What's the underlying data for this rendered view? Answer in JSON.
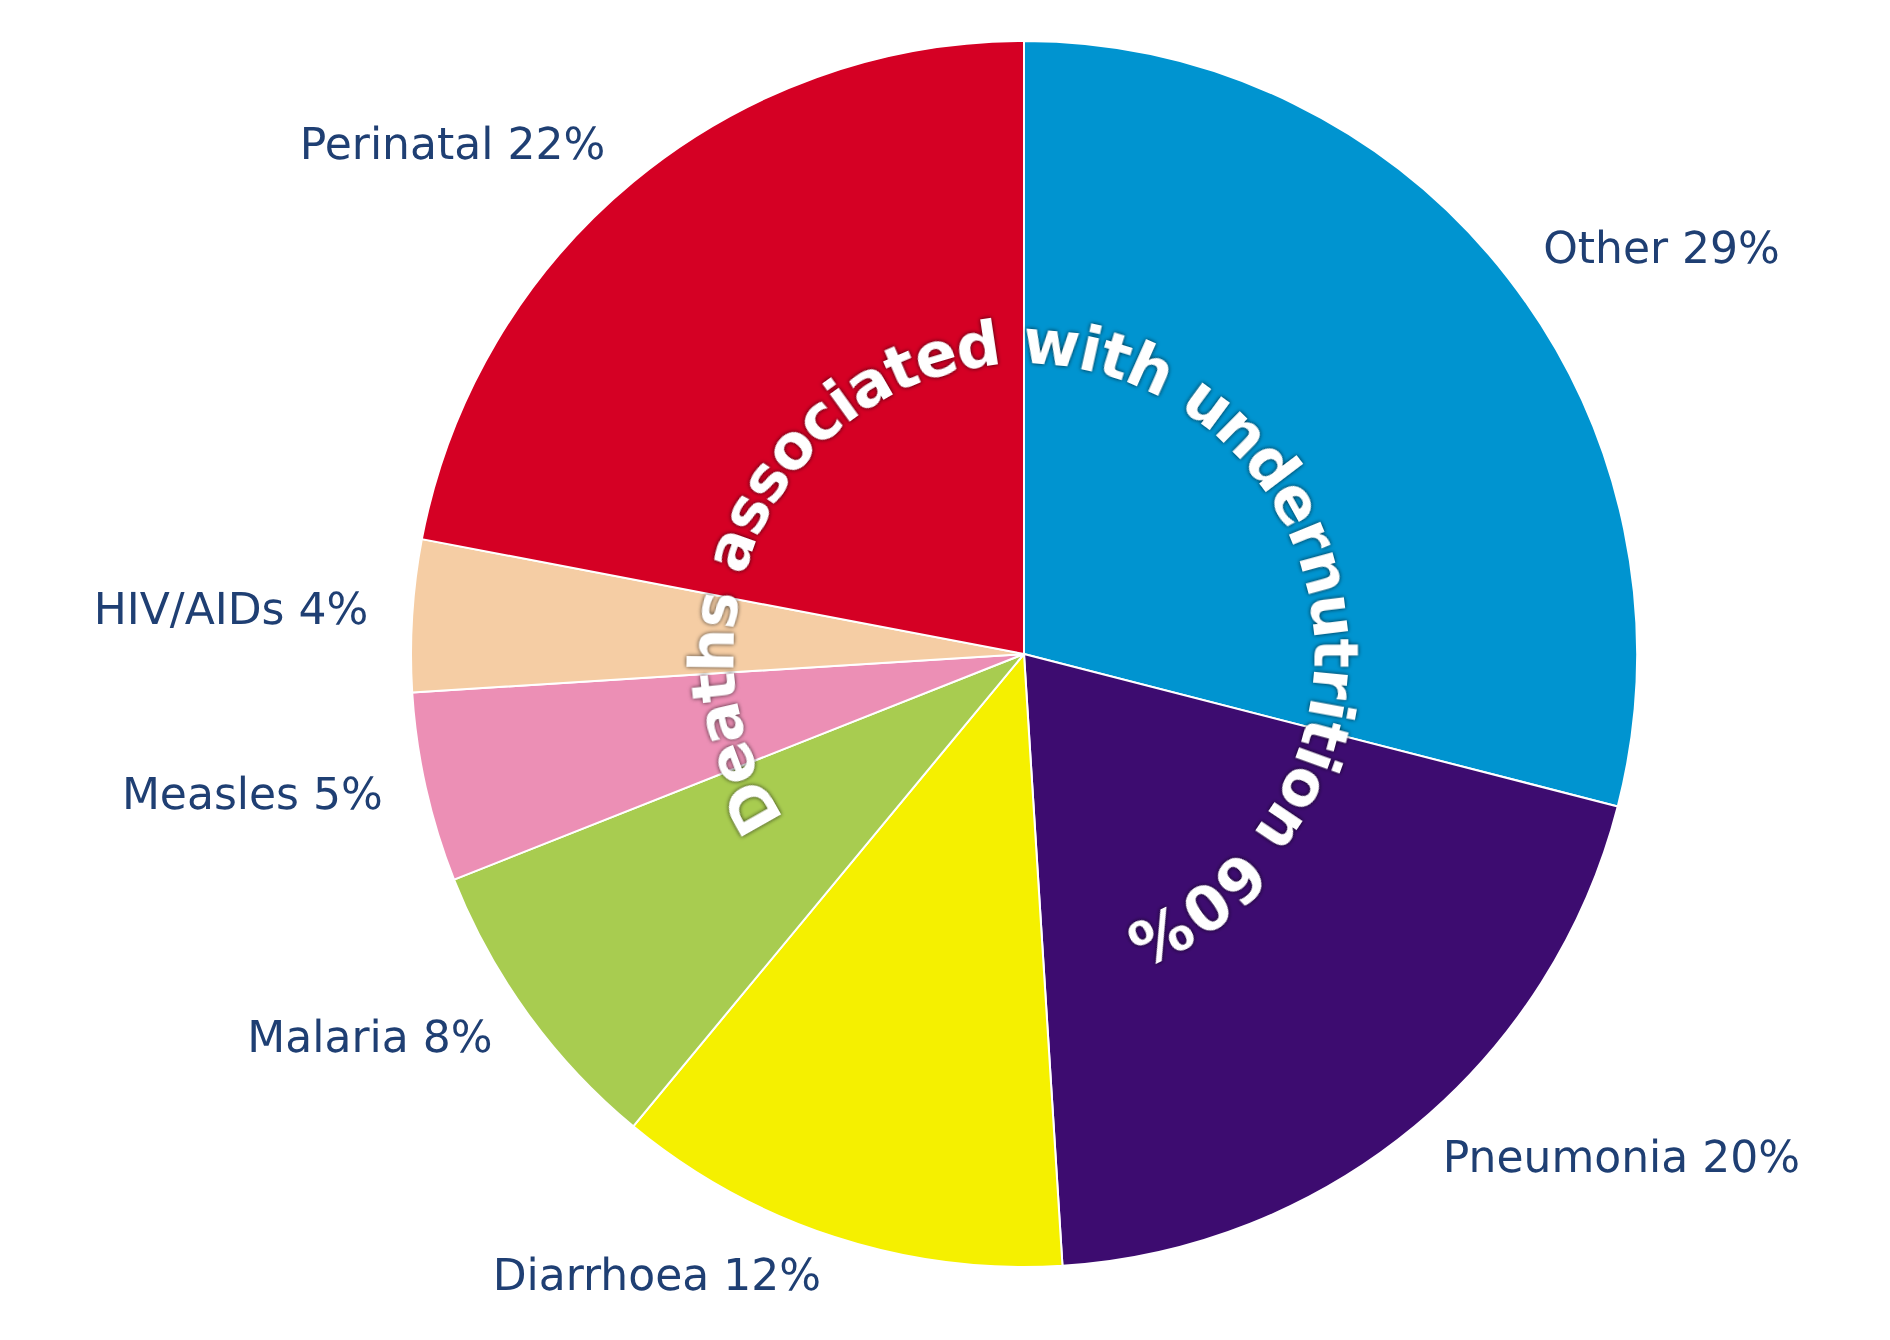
{
  "chart_data": {
    "type": "pie",
    "categories": [
      "Other",
      "Pneumonia",
      "Diarrhoea",
      "Malaria",
      "Measles",
      "HIV/AIDs",
      "Perinatal"
    ],
    "values": [
      29,
      20,
      12,
      8,
      5,
      4,
      22
    ],
    "value_labels": [
      "29%",
      "20%",
      "12%",
      "8%",
      "5%",
      "4%",
      "22%"
    ],
    "colors": [
      "#0094d0",
      "#3d0c70",
      "#f5f000",
      "#a8cc50",
      "#ec8fb5",
      "#f5cda4",
      "#d50024"
    ],
    "annotations": [
      "Deaths associated with undernutrition 60%"
    ],
    "legend": false
  }
}
